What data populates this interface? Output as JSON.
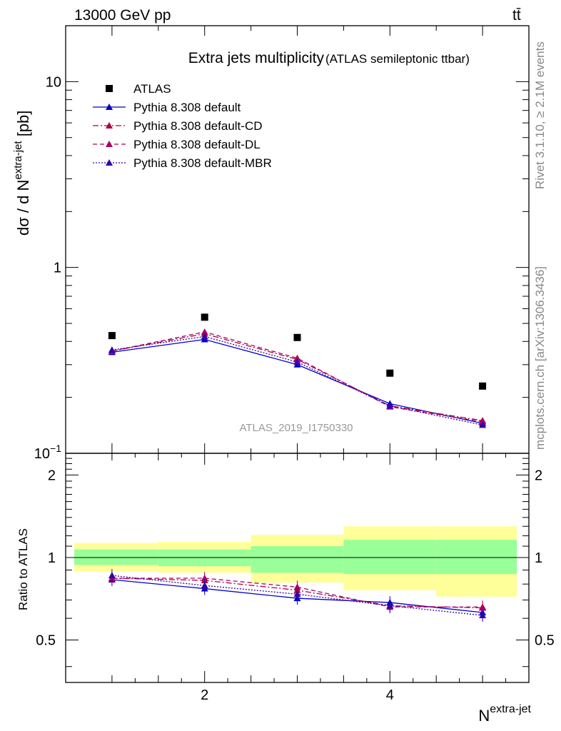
{
  "header": {
    "energy_label": "13000 GeV pp",
    "process_label": "tt̄"
  },
  "side_labels": {
    "rivet": "Rivet 3.1.10, ≥ 2.1M events",
    "mcplots": "mcplots.cern.ch [arXiv:1306.3436]"
  },
  "watermark": "ATLAS_2019_I1750330",
  "colors": {
    "atlas": "#000000",
    "default": "#0000cc",
    "default_cd": "#aa0044",
    "default_dl": "#aa0066",
    "default_mbr": "#3300aa",
    "band_stat": "#99ff99",
    "band_total": "#ffff99"
  },
  "chart_data": [
    {
      "type": "scatter",
      "title": "Extra jets multiplicity",
      "subtitle": "(ATLAS semileptonic ttbar)",
      "ylabel": "dσ / d N^{extra-jet} [pb]",
      "yscale": "log",
      "ylim": [
        0.1,
        20
      ],
      "xlim": [
        0.5,
        5.5
      ],
      "yticks": [
        "10^{−1}",
        "1",
        "10"
      ],
      "legend_placement": "top-left",
      "x": [
        1,
        2,
        3,
        4,
        5
      ],
      "series": [
        {
          "name": "ATLAS",
          "style": "marker-square",
          "values": [
            0.43,
            0.54,
            0.42,
            0.27,
            0.23
          ]
        },
        {
          "name": "Pythia 8.308 default",
          "style": "solid",
          "values": [
            0.35,
            0.41,
            0.3,
            0.185,
            0.145
          ]
        },
        {
          "name": "Pythia 8.308 default-CD",
          "style": "dashdot",
          "values": [
            0.355,
            0.44,
            0.32,
            0.18,
            0.15
          ]
        },
        {
          "name": "Pythia 8.308 default-DL",
          "style": "dashed",
          "values": [
            0.355,
            0.45,
            0.325,
            0.178,
            0.148
          ]
        },
        {
          "name": "Pythia 8.308 default-MBR",
          "style": "dotted",
          "values": [
            0.36,
            0.425,
            0.31,
            0.18,
            0.142
          ]
        }
      ]
    },
    {
      "type": "line",
      "ylabel": "Ratio to ATLAS",
      "xlabel": "N^{extra-jet}",
      "xlim": [
        0.5,
        5.5
      ],
      "ylim": [
        0.35,
        2.4
      ],
      "xticks": [
        "2",
        "4"
      ],
      "yticks": [
        "0.5",
        "1",
        "2"
      ],
      "bins": [
        [
          0.5,
          1.5
        ],
        [
          1.5,
          2.5
        ],
        [
          2.5,
          3.5
        ],
        [
          3.5,
          4.5
        ],
        [
          4.5,
          5.5
        ]
      ],
      "stat_band": [
        [
          0.94,
          1.07
        ],
        [
          0.93,
          1.07
        ],
        [
          0.88,
          1.1
        ],
        [
          0.87,
          1.16
        ],
        [
          0.87,
          1.16
        ]
      ],
      "total_band": [
        [
          0.89,
          1.13
        ],
        [
          0.88,
          1.14
        ],
        [
          0.81,
          1.21
        ],
        [
          0.76,
          1.3
        ],
        [
          0.72,
          1.3
        ]
      ],
      "x": [
        1,
        2,
        3,
        4,
        5
      ],
      "series": [
        {
          "name": "Pythia 8.308 default",
          "values": [
            0.83,
            0.77,
            0.71,
            0.685,
            0.63
          ]
        },
        {
          "name": "Pythia 8.308 default-CD",
          "values": [
            0.84,
            0.825,
            0.76,
            0.667,
            0.655
          ]
        },
        {
          "name": "Pythia 8.308 default-DL",
          "values": [
            0.84,
            0.84,
            0.78,
            0.66,
            0.66
          ]
        },
        {
          "name": "Pythia 8.308 default-MBR",
          "values": [
            0.86,
            0.79,
            0.735,
            0.667,
            0.615
          ]
        }
      ]
    }
  ]
}
